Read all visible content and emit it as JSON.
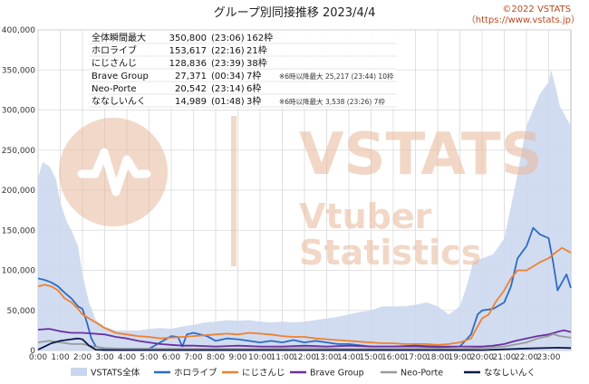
{
  "header": {
    "title": "グループ別同接推移 2023/4/4",
    "credit_line1": "©2022 VSTATS",
    "credit_line2": "（https://www.vstats.jp）"
  },
  "watermark": {
    "line1": "VSTATS",
    "line2": "Vtuber",
    "line3": "Statistics",
    "color": "#e8b89a"
  },
  "summary": {
    "rows": [
      {
        "name": "全体瞬間最大",
        "value": "350,800",
        "time": "(23:06)",
        "frames": "162枠",
        "note": ""
      },
      {
        "name": "ホロライブ",
        "value": "153,617",
        "time": "(22:16)",
        "frames": "21枠",
        "note": ""
      },
      {
        "name": "にじさんじ",
        "value": "128,836",
        "time": "(23:39)",
        "frames": "38枠",
        "note": ""
      },
      {
        "name": "Brave Group",
        "value": "27,371",
        "time": "(00:34)",
        "frames": "7枠",
        "note": "※6時以降最大 25,217 (23:44) 10枠"
      },
      {
        "name": "Neo-Porte",
        "value": "20,542",
        "time": "(23:14)",
        "frames": "6枠",
        "note": ""
      },
      {
        "name": "ななしいんく",
        "value": "14,989",
        "time": "(01:48)",
        "frames": "3枠",
        "note": "※6時以降最大 3,538 (23:26) 7枠"
      }
    ]
  },
  "chart_data": {
    "type": "area",
    "title": "グループ別同接推移 2023/4/4",
    "xlabel": "",
    "ylabel": "",
    "x_range": [
      "0:00",
      "24:00"
    ],
    "ylim": [
      0,
      400000
    ],
    "y_ticks": [
      "0",
      "50,000",
      "100,000",
      "150,000",
      "200,000",
      "250,000",
      "300,000",
      "350,000",
      "400,000"
    ],
    "x_ticks": [
      "0:00",
      "1:00",
      "2:00",
      "3:00",
      "4:00",
      "5:00",
      "6:00",
      "7:00",
      "8:00",
      "9:00",
      "10:00",
      "11:00",
      "12:00",
      "13:00",
      "14:00",
      "15:00",
      "16:00",
      "17:00",
      "18:00",
      "19:00",
      "20:00",
      "21:00",
      "22:00",
      "23:00"
    ],
    "grid": true,
    "legend_position": "bottom",
    "series": [
      {
        "name": "VSTATS全体",
        "kind": "area",
        "color": "#c9d6ef",
        "points": [
          [
            0,
            215000
          ],
          [
            0.2,
            235000
          ],
          [
            0.5,
            230000
          ],
          [
            0.8,
            215000
          ],
          [
            1.0,
            185000
          ],
          [
            1.3,
            160000
          ],
          [
            1.5,
            150000
          ],
          [
            1.8,
            130000
          ],
          [
            2.0,
            95000
          ],
          [
            2.3,
            60000
          ],
          [
            2.6,
            38000
          ],
          [
            3.0,
            30000
          ],
          [
            3.5,
            25000
          ],
          [
            4.0,
            25000
          ],
          [
            4.5,
            25000
          ],
          [
            5.0,
            27000
          ],
          [
            5.5,
            28000
          ],
          [
            6.0,
            27000
          ],
          [
            6.5,
            30000
          ],
          [
            7.0,
            32000
          ],
          [
            7.5,
            35000
          ],
          [
            8.0,
            36000
          ],
          [
            8.5,
            38000
          ],
          [
            9.0,
            37000
          ],
          [
            9.5,
            38000
          ],
          [
            10.0,
            36000
          ],
          [
            10.5,
            35000
          ],
          [
            11.0,
            36000
          ],
          [
            11.5,
            35000
          ],
          [
            12.0,
            36000
          ],
          [
            12.5,
            38000
          ],
          [
            13.0,
            40000
          ],
          [
            13.5,
            42000
          ],
          [
            14.0,
            45000
          ],
          [
            14.5,
            48000
          ],
          [
            15.0,
            50000
          ],
          [
            15.5,
            55000
          ],
          [
            16.0,
            55000
          ],
          [
            16.5,
            55000
          ],
          [
            17.0,
            57000
          ],
          [
            17.5,
            60000
          ],
          [
            18.0,
            55000
          ],
          [
            18.5,
            45000
          ],
          [
            19.0,
            55000
          ],
          [
            19.3,
            80000
          ],
          [
            19.6,
            110000
          ],
          [
            20.0,
            115000
          ],
          [
            20.5,
            120000
          ],
          [
            21.0,
            140000
          ],
          [
            21.3,
            180000
          ],
          [
            21.6,
            220000
          ],
          [
            22.0,
            280000
          ],
          [
            22.3,
            300000
          ],
          [
            22.6,
            320000
          ],
          [
            23.0,
            335000
          ],
          [
            23.1,
            350000
          ],
          [
            23.3,
            330000
          ],
          [
            23.5,
            305000
          ],
          [
            23.7,
            295000
          ],
          [
            24.0,
            280000
          ]
        ]
      },
      {
        "name": "ホロライブ",
        "kind": "line",
        "color": "#2e6bc4",
        "points": [
          [
            0,
            90000
          ],
          [
            0.3,
            88000
          ],
          [
            0.6,
            85000
          ],
          [
            0.9,
            80000
          ],
          [
            1.2,
            72000
          ],
          [
            1.5,
            65000
          ],
          [
            1.8,
            55000
          ],
          [
            2.0,
            52000
          ],
          [
            2.2,
            35000
          ],
          [
            2.4,
            15000
          ],
          [
            2.6,
            5000
          ],
          [
            3.0,
            2000
          ],
          [
            4.0,
            2000
          ],
          [
            5.0,
            2000
          ],
          [
            6.0,
            18000
          ],
          [
            6.3,
            17000
          ],
          [
            6.5,
            5000
          ],
          [
            6.7,
            20000
          ],
          [
            7.0,
            22000
          ],
          [
            7.3,
            20000
          ],
          [
            7.6,
            18000
          ],
          [
            7.8,
            15000
          ],
          [
            8.0,
            12000
          ],
          [
            8.5,
            15000
          ],
          [
            9.0,
            14000
          ],
          [
            9.5,
            12000
          ],
          [
            10.0,
            10000
          ],
          [
            10.5,
            12000
          ],
          [
            11.0,
            10000
          ],
          [
            11.5,
            13000
          ],
          [
            12.0,
            10000
          ],
          [
            12.5,
            12000
          ],
          [
            13.0,
            10000
          ],
          [
            13.5,
            8000
          ],
          [
            14.0,
            8000
          ],
          [
            15.0,
            5000
          ],
          [
            16.0,
            5000
          ],
          [
            17.0,
            5000
          ],
          [
            18.0,
            4000
          ],
          [
            19.0,
            5000
          ],
          [
            19.5,
            20000
          ],
          [
            19.8,
            45000
          ],
          [
            20.0,
            50000
          ],
          [
            20.5,
            52000
          ],
          [
            21.0,
            60000
          ],
          [
            21.3,
            80000
          ],
          [
            21.6,
            115000
          ],
          [
            22.0,
            130000
          ],
          [
            22.3,
            153000
          ],
          [
            22.6,
            145000
          ],
          [
            23.0,
            140000
          ],
          [
            23.2,
            110000
          ],
          [
            23.4,
            75000
          ],
          [
            23.6,
            85000
          ],
          [
            23.8,
            95000
          ],
          [
            24.0,
            78000
          ]
        ]
      },
      {
        "name": "にじさんじ",
        "kind": "line",
        "color": "#f0802e",
        "points": [
          [
            0,
            80000
          ],
          [
            0.3,
            82000
          ],
          [
            0.6,
            80000
          ],
          [
            0.9,
            75000
          ],
          [
            1.2,
            65000
          ],
          [
            1.5,
            60000
          ],
          [
            1.8,
            52000
          ],
          [
            2.0,
            45000
          ],
          [
            2.3,
            40000
          ],
          [
            2.6,
            35000
          ],
          [
            3.0,
            28000
          ],
          [
            3.5,
            22000
          ],
          [
            4.0,
            20000
          ],
          [
            4.5,
            18000
          ],
          [
            5.0,
            17000
          ],
          [
            5.5,
            15000
          ],
          [
            6.0,
            16000
          ],
          [
            6.5,
            17000
          ],
          [
            7.0,
            18000
          ],
          [
            7.5,
            19000
          ],
          [
            8.0,
            20000
          ],
          [
            8.5,
            21000
          ],
          [
            9.0,
            20000
          ],
          [
            9.5,
            22000
          ],
          [
            10.0,
            21000
          ],
          [
            10.5,
            20000
          ],
          [
            11.0,
            18000
          ],
          [
            11.5,
            17000
          ],
          [
            12.0,
            17000
          ],
          [
            12.5,
            15000
          ],
          [
            13.0,
            14000
          ],
          [
            13.5,
            13000
          ],
          [
            14.0,
            12000
          ],
          [
            14.5,
            11000
          ],
          [
            15.0,
            10000
          ],
          [
            15.5,
            9000
          ],
          [
            16.0,
            9000
          ],
          [
            16.5,
            8000
          ],
          [
            17.0,
            8000
          ],
          [
            17.5,
            8000
          ],
          [
            18.0,
            7000
          ],
          [
            18.5,
            8000
          ],
          [
            19.0,
            10000
          ],
          [
            19.5,
            15000
          ],
          [
            20.0,
            40000
          ],
          [
            20.3,
            45000
          ],
          [
            20.6,
            60000
          ],
          [
            21.0,
            75000
          ],
          [
            21.3,
            90000
          ],
          [
            21.6,
            100000
          ],
          [
            22.0,
            100000
          ],
          [
            22.3,
            105000
          ],
          [
            22.6,
            110000
          ],
          [
            23.0,
            115000
          ],
          [
            23.3,
            122000
          ],
          [
            23.6,
            128000
          ],
          [
            24.0,
            122000
          ]
        ]
      },
      {
        "name": "Brave Group",
        "kind": "line",
        "color": "#6a2fa0",
        "points": [
          [
            0,
            26000
          ],
          [
            0.5,
            27000
          ],
          [
            1.0,
            24000
          ],
          [
            1.5,
            22000
          ],
          [
            2.0,
            22000
          ],
          [
            2.5,
            21000
          ],
          [
            3.0,
            20000
          ],
          [
            3.5,
            17000
          ],
          [
            4.0,
            15000
          ],
          [
            4.5,
            12000
          ],
          [
            5.0,
            10000
          ],
          [
            5.5,
            8000
          ],
          [
            6.0,
            7000
          ],
          [
            6.5,
            6000
          ],
          [
            7.0,
            6000
          ],
          [
            8.0,
            5000
          ],
          [
            9.0,
            6000
          ],
          [
            10.0,
            5000
          ],
          [
            11.0,
            5000
          ],
          [
            12.0,
            6000
          ],
          [
            13.0,
            5000
          ],
          [
            14.0,
            6000
          ],
          [
            15.0,
            5000
          ],
          [
            16.0,
            5000
          ],
          [
            17.0,
            6000
          ],
          [
            18.0,
            5000
          ],
          [
            19.0,
            5000
          ],
          [
            20.0,
            5000
          ],
          [
            20.5,
            6000
          ],
          [
            21.0,
            8000
          ],
          [
            21.5,
            12000
          ],
          [
            22.0,
            15000
          ],
          [
            22.5,
            18000
          ],
          [
            23.0,
            20000
          ],
          [
            23.5,
            24000
          ],
          [
            23.7,
            25200
          ],
          [
            24.0,
            23000
          ]
        ]
      },
      {
        "name": "Neo-Porte",
        "kind": "line",
        "color": "#9a9a9a",
        "points": [
          [
            0,
            10000
          ],
          [
            0.5,
            12000
          ],
          [
            1.0,
            10000
          ],
          [
            1.5,
            8000
          ],
          [
            2.0,
            8000
          ],
          [
            2.5,
            5000
          ],
          [
            3.0,
            3000
          ],
          [
            4.0,
            2000
          ],
          [
            5.0,
            2000
          ],
          [
            6.0,
            2000
          ],
          [
            8.0,
            2000
          ],
          [
            10.0,
            2000
          ],
          [
            12.0,
            3000
          ],
          [
            14.0,
            2000
          ],
          [
            16.0,
            2000
          ],
          [
            18.0,
            2000
          ],
          [
            19.0,
            2000
          ],
          [
            20.0,
            3000
          ],
          [
            21.0,
            5000
          ],
          [
            22.0,
            10000
          ],
          [
            22.5,
            15000
          ],
          [
            23.0,
            18000
          ],
          [
            23.2,
            20500
          ],
          [
            23.5,
            18000
          ],
          [
            24.0,
            16000
          ]
        ]
      },
      {
        "name": "ななしいんく",
        "kind": "line",
        "color": "#0d1a4a",
        "points": [
          [
            0,
            1000
          ],
          [
            0.3,
            5000
          ],
          [
            0.6,
            9000
          ],
          [
            1.0,
            12000
          ],
          [
            1.5,
            14000
          ],
          [
            1.8,
            15000
          ],
          [
            2.0,
            14000
          ],
          [
            2.3,
            6000
          ],
          [
            2.6,
            1000
          ],
          [
            3.0,
            500
          ],
          [
            5.0,
            500
          ],
          [
            8.0,
            500
          ],
          [
            12.0,
            500
          ],
          [
            16.0,
            500
          ],
          [
            20.0,
            500
          ],
          [
            21.0,
            1500
          ],
          [
            22.0,
            2500
          ],
          [
            23.4,
            3500
          ],
          [
            24.0,
            3000
          ]
        ]
      }
    ]
  }
}
